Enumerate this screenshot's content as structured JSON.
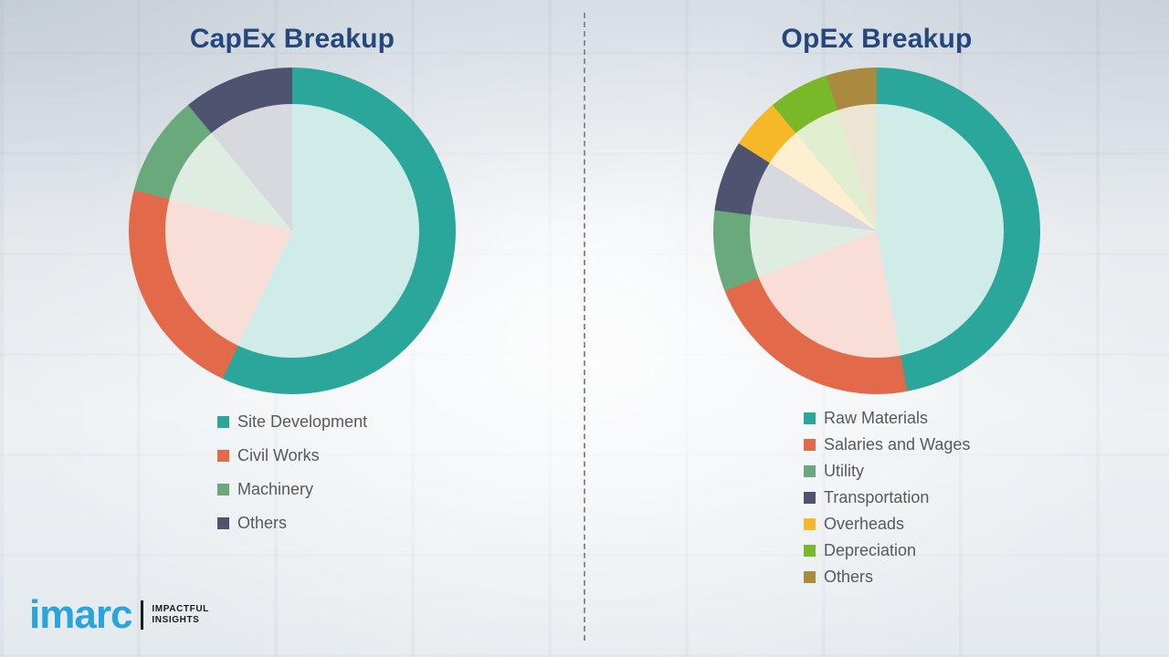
{
  "chart_data": [
    {
      "type": "donut",
      "title": "CapEx Breakup",
      "legend_position": "bottom-left",
      "segments": [
        {
          "label": "Site Development",
          "value": 57,
          "color": "#2aa79a"
        },
        {
          "label": "Civil Works",
          "value": 22,
          "color": "#e26a4b"
        },
        {
          "label": "Machinery",
          "value": 10,
          "color": "#6aa97b"
        },
        {
          "label": "Others",
          "value": 11,
          "color": "#4e5470"
        }
      ]
    },
    {
      "type": "donut",
      "title": "OpEx Breakup",
      "legend_position": "bottom-left",
      "segments": [
        {
          "label": "Raw Materials",
          "value": 47,
          "color": "#2aa79a"
        },
        {
          "label": "Salaries and Wages",
          "value": 22,
          "color": "#e26a4b"
        },
        {
          "label": "Utility",
          "value": 8,
          "color": "#6aa97b"
        },
        {
          "label": "Transportation",
          "value": 7,
          "color": "#4e5470"
        },
        {
          "label": "Overheads",
          "value": 5,
          "color": "#f6b827"
        },
        {
          "label": "Depreciation",
          "value": 6,
          "color": "#79b829"
        },
        {
          "label": "Others",
          "value": 5,
          "color": "#a98a3e"
        }
      ]
    }
  ],
  "logo": {
    "brand": "imarc",
    "tagline_line1": "IMPACTFUL",
    "tagline_line2": "INSIGHTS"
  }
}
